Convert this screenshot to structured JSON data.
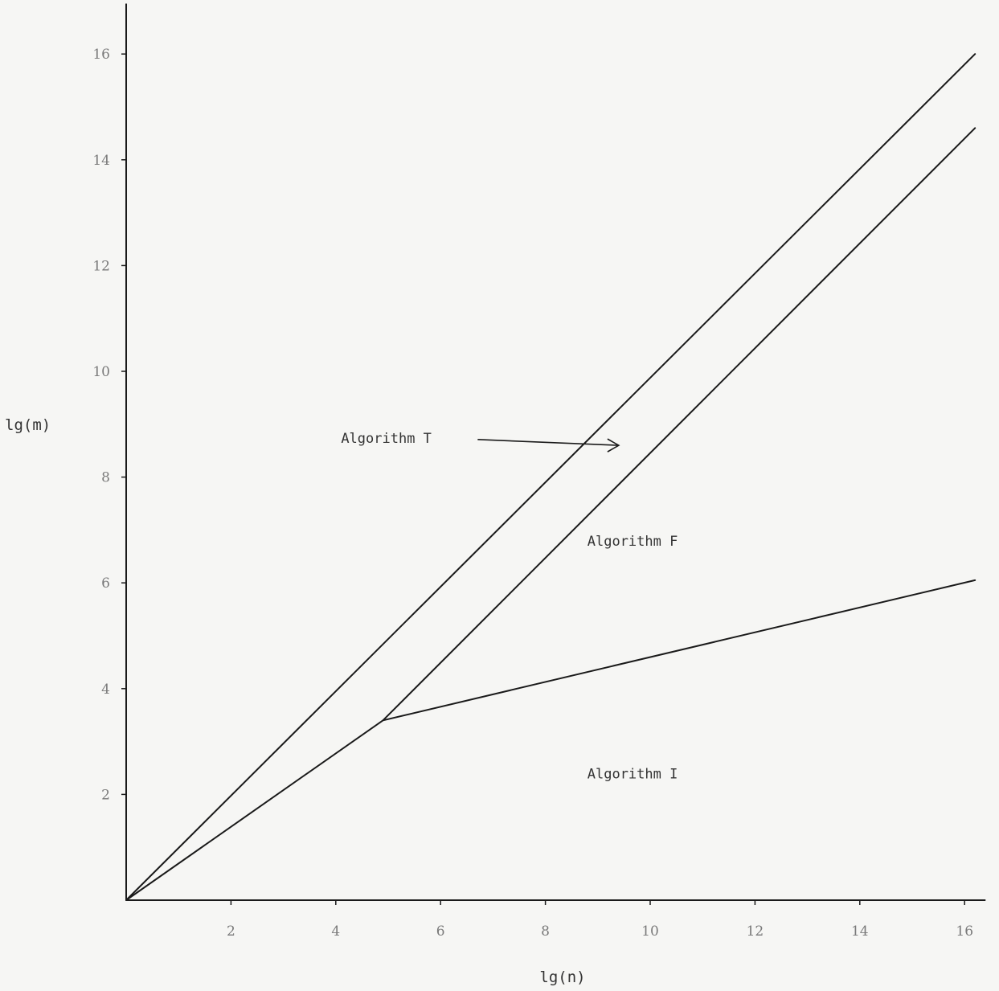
{
  "chart_data": {
    "type": "line",
    "title": "",
    "xlabel": "lg(n)",
    "ylabel": "lg(m)",
    "xlim": [
      0,
      16.4
    ],
    "ylim": [
      0,
      16.8
    ],
    "x_ticks": [
      2,
      4,
      6,
      8,
      10,
      12,
      14,
      16
    ],
    "y_ticks": [
      2,
      4,
      6,
      8,
      10,
      12,
      14,
      16
    ],
    "x_tick_labels": [
      "2",
      "4",
      "6",
      "8",
      "10",
      "12",
      "14",
      "16"
    ],
    "y_tick_labels": [
      "2",
      "4",
      "6",
      "8",
      "10",
      "12",
      "14",
      "16"
    ],
    "grid": false,
    "legend": "none",
    "series": [
      {
        "x": [
          0,
          16.2
        ],
        "y": [
          0,
          16.0
        ]
      },
      {
        "x": [
          0,
          4.9,
          16.2
        ],
        "y": [
          0,
          3.4,
          14.6
        ]
      },
      {
        "x": [
          4.9,
          16.2
        ],
        "y": [
          3.4,
          6.05
        ]
      }
    ],
    "annotations": [
      {
        "text": "Algorithm T",
        "x": 4.1,
        "y": 8.65,
        "arrow_to": [
          9.4,
          8.6
        ]
      },
      {
        "text": "Algorithm F",
        "x": 8.8,
        "y": 6.7
      },
      {
        "text": "Algorithm I",
        "x": 8.8,
        "y": 2.3
      }
    ]
  }
}
